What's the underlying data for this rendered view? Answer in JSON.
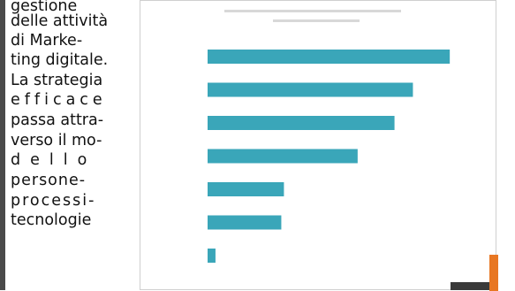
{
  "text_lines": [
    "gestione",
    "delle attività",
    "di Marke-",
    "ting digitale.",
    "La strategia",
    "efficace",
    "passa attra-",
    "verso il mo-",
    "dello",
    "persone-",
    "processi-",
    "tecnologie"
  ],
  "chart_data": {
    "type": "bar",
    "orientation": "horizontal",
    "title": "",
    "xlabel": "",
    "ylabel": "",
    "categories": [
      "",
      "",
      "",
      "",
      "",
      "",
      ""
    ],
    "values": [
      92,
      78,
      71,
      57,
      29,
      28,
      3
    ],
    "xlim": [
      0,
      100
    ],
    "bar_color": "#3aa6b9",
    "grid": false
  },
  "colors": {
    "bar": "#3aa6b9",
    "accent": "#e87722",
    "sidebar": "#4a4a4a"
  }
}
